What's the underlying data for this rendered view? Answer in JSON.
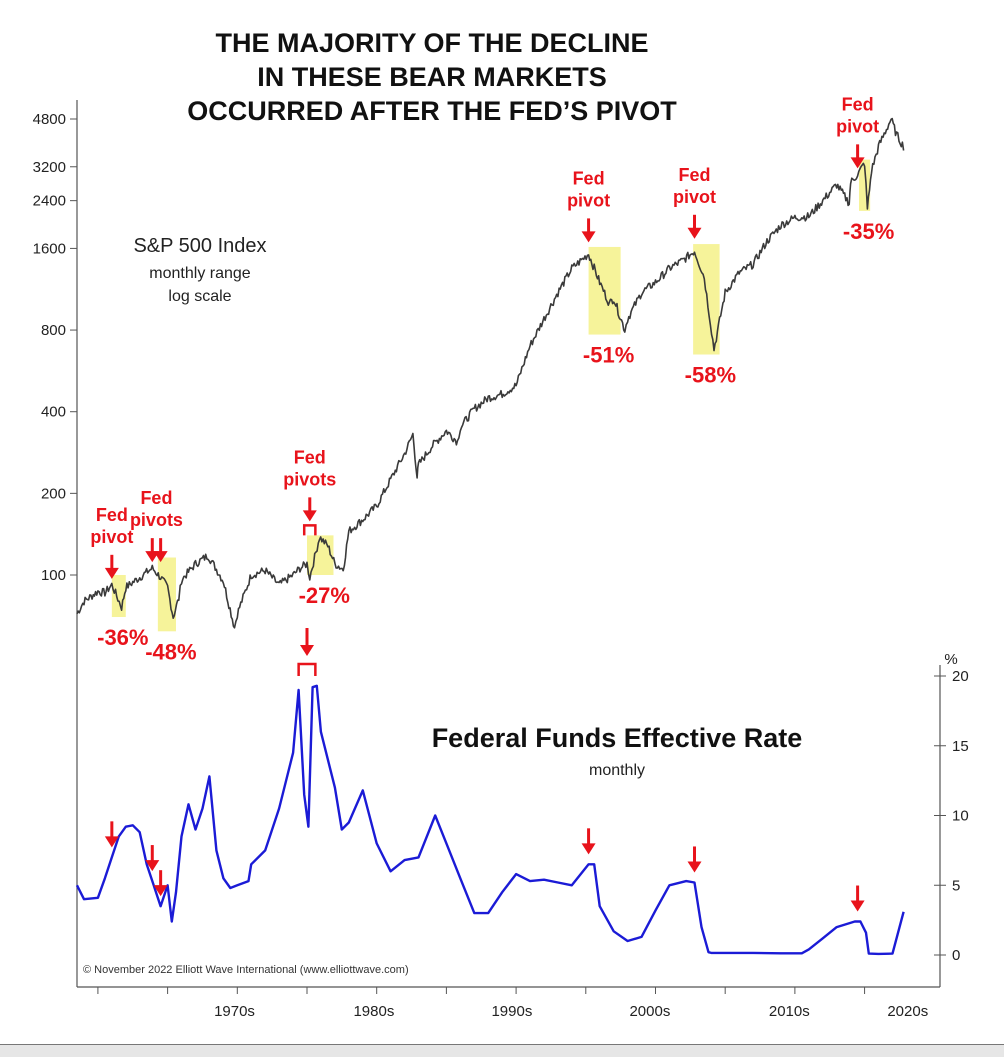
{
  "colors": {
    "sp500_line": "#3a3a3a",
    "rate_line": "#1b1bd6",
    "annotation_red": "#e8131b",
    "highlight": "#f6f39a"
  },
  "chart_data": [
    {
      "type": "line",
      "title": [
        "THE MAJORITY OF THE DECLINE",
        "IN THESE BEAR MARKETS",
        "OCCURRED AFTER THE FED’S PIVOT"
      ],
      "panel_label": "S&P 500 Index",
      "panel_sublabel_1": "monthly range",
      "panel_sublabel_2": "log scale",
      "y_scale": "log",
      "yticks": [
        100,
        200,
        400,
        800,
        1600,
        2400,
        3200,
        4800
      ],
      "ylim": [
        80,
        5400
      ],
      "xlim": [
        1963.5,
        2022.9
      ],
      "series": [
        {
          "x": [
            1963.5,
            1964,
            1965,
            1965.5,
            1966,
            1966.7,
            1967,
            1968,
            1968.9,
            1969.5,
            1970,
            1970.4,
            1970.8,
            1971,
            1972,
            1972.9,
            1973.5,
            1974,
            1974.8,
            1975,
            1976,
            1977,
            1978,
            1979,
            1979.5,
            1980,
            1980.2,
            1980.9,
            1981.5,
            1982,
            1982.6,
            1983,
            1984,
            1985,
            1986,
            1987,
            1987.6,
            1987.9,
            1988,
            1989,
            1990,
            1990.8,
            1991,
            1992,
            1993,
            1994,
            1995,
            1996,
            1997,
            1998,
            1999,
            2000.2,
            2001,
            2001.7,
            2002,
            2002.8,
            2003,
            2004,
            2005,
            2006,
            2007,
            2007.8,
            2008.5,
            2009.2,
            2010,
            2011,
            2012,
            2013,
            2014,
            2015,
            2016,
            2017,
            2018,
            2018.9,
            2019,
            2019.5,
            2020,
            2020.2,
            2020.5,
            2021,
            2021.9,
            2022.3,
            2022.8
          ],
          "values": [
            72,
            80,
            87,
            86,
            92,
            76,
            90,
            98,
            106,
            98,
            90,
            70,
            82,
            96,
            110,
            118,
            105,
            95,
            64,
            72,
            100,
            104,
            92,
            100,
            106,
            110,
            98,
            138,
            128,
            110,
            105,
            145,
            160,
            180,
            225,
            280,
            330,
            230,
            255,
            300,
            340,
            310,
            350,
            410,
            450,
            465,
            500,
            700,
            880,
            1100,
            1350,
            1527,
            1200,
            1000,
            1050,
            800,
            880,
            1100,
            1200,
            1350,
            1450,
            1565,
            1250,
            680,
            1100,
            1300,
            1400,
            1700,
            1950,
            2080,
            2100,
            2400,
            2750,
            2350,
            2800,
            3000,
            3300,
            2237,
            3100,
            3800,
            4796,
            4200,
            3800
          ]
        }
      ],
      "annotations": [
        {
          "label_1": "Fed",
          "label_2": "pivot",
          "decline": "-36%",
          "pivot_x": 1966.0,
          "pivot_value": 92,
          "box_x": [
            1966.0,
            1967.0
          ],
          "box_y": [
            70,
            100
          ]
        },
        {
          "label_1": "Fed",
          "label_2": "pivots",
          "decline": "-48%",
          "pivot_x": 1968.9,
          "pivot_x2": 1969.5,
          "pivot_value": 106,
          "box_x": [
            1969.3,
            1970.6
          ],
          "box_y": [
            62,
            116
          ]
        },
        {
          "label_1": "Fed",
          "label_2": "pivots",
          "decline": "-27%",
          "pivot_x": 1979.8,
          "pivot_x2": 1980.6,
          "pivot_value": 140,
          "box_x": [
            1980.0,
            1981.9
          ],
          "box_y": [
            100,
            140
          ]
        },
        {
          "label_1": "Fed",
          "label_2": "pivot",
          "decline": "-51%",
          "pivot_x": 2000.2,
          "pivot_value": 1600,
          "box_x": [
            2000.2,
            2002.5
          ],
          "box_y": [
            770,
            1620
          ]
        },
        {
          "label_1": "Fed",
          "label_2": "pivot",
          "decline": "-58%",
          "pivot_x": 2007.8,
          "pivot_value": 1650,
          "box_x": [
            2007.7,
            2009.6
          ],
          "box_y": [
            650,
            1660
          ]
        },
        {
          "label_1": "Fed",
          "label_2": "pivot",
          "decline": "-35%",
          "pivot_x": 2019.5,
          "pivot_value": 3000,
          "box_x": [
            2019.6,
            2020.4
          ],
          "box_y": [
            2200,
            3400
          ]
        }
      ]
    },
    {
      "type": "line",
      "title": "Federal Funds Effective Rate",
      "subtitle": "monthly",
      "ylabel": "%",
      "yticks": [
        0,
        5,
        10,
        15,
        20
      ],
      "ylim": [
        0,
        20
      ],
      "xlim": [
        1963.5,
        2022.9
      ],
      "xticks": [
        "1970s",
        "1980s",
        "1990s",
        "2000s",
        "2010s",
        "2020s"
      ],
      "xtick_values": [
        1974.8,
        1984.8,
        1994.7,
        2004.6,
        2014.6,
        2023.1
      ],
      "credit": "© November 2022 Elliott Wave International (www.elliottwave.com)",
      "series": [
        {
          "x": [
            1963.5,
            1964,
            1965,
            1965.5,
            1966,
            1966.5,
            1967,
            1967.5,
            1968,
            1968.5,
            1969,
            1969.5,
            1970,
            1970.3,
            1970.6,
            1971,
            1971.5,
            1972,
            1972.5,
            1973,
            1973.5,
            1974,
            1974.5,
            1975,
            1975.8,
            1976,
            1977,
            1978,
            1979,
            1979.4,
            1979.8,
            1980.1,
            1980.4,
            1980.7,
            1981,
            1981.5,
            1982,
            1982.5,
            1983,
            1984,
            1985,
            1986,
            1987,
            1988,
            1989.2,
            1990,
            1991,
            1992,
            1993,
            1994,
            1995,
            1996,
            1997,
            1998,
            1999,
            2000.2,
            2000.6,
            2001,
            2002,
            2003,
            2004,
            2005,
            2006,
            2007.2,
            2007.8,
            2008.3,
            2008.8,
            2009,
            2010,
            2012,
            2014,
            2015.5,
            2016,
            2017,
            2018,
            2019.3,
            2019.7,
            2020.1,
            2020.3,
            2021,
            2022,
            2022.8
          ],
          "values": [
            5,
            4.0,
            4.1,
            5.5,
            7.0,
            8.5,
            9.2,
            9.3,
            8.8,
            6.5,
            5.0,
            3.5,
            5.0,
            2.4,
            4.5,
            8.5,
            10.8,
            9.0,
            10.5,
            12.8,
            7.5,
            5.5,
            4.8,
            5.0,
            5.3,
            6.5,
            7.5,
            10.5,
            14.5,
            19.0,
            11.5,
            9.2,
            19.2,
            19.3,
            16.0,
            14.0,
            12.0,
            9.0,
            9.5,
            11.8,
            8.0,
            6.0,
            6.8,
            7.0,
            10.0,
            8.0,
            5.5,
            3.0,
            3.0,
            4.5,
            5.8,
            5.3,
            5.4,
            5.2,
            5.0,
            6.5,
            6.5,
            3.5,
            1.7,
            1.0,
            1.3,
            3.2,
            5.0,
            5.3,
            5.2,
            2.0,
            0.2,
            0.15,
            0.15,
            0.15,
            0.12,
            0.12,
            0.4,
            1.2,
            2.0,
            2.4,
            2.4,
            1.6,
            0.1,
            0.08,
            0.1,
            3.1
          ]
        }
      ],
      "pivot_marks": [
        1966.0,
        1968.9,
        1969.5,
        1979.8,
        2000.2,
        2007.8,
        2019.5
      ],
      "pivot_bracket": [
        1979.4,
        1980.6
      ]
    }
  ]
}
